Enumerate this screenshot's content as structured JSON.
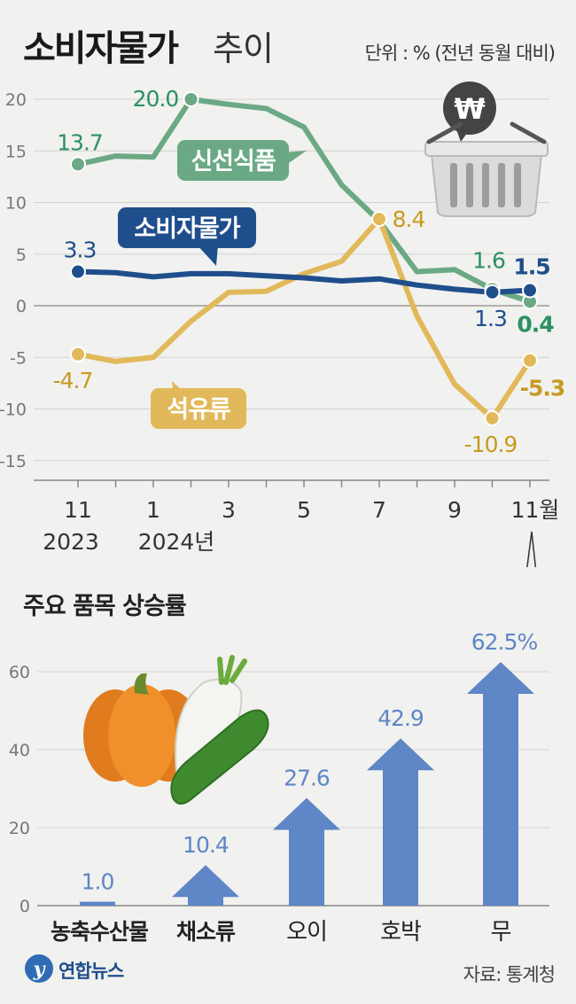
{
  "title": {
    "main": "소비자물가",
    "sub": "추이",
    "unit": "단위 : % (전년 동월 대비)"
  },
  "colors": {
    "cpi": "#1f4e8c",
    "fresh": "#6aa984",
    "oil": "#e2b95a",
    "bar": "#5f86c6",
    "fresh_label": "#2b9160",
    "oil_label": "#c79a22"
  },
  "chart_data": [
    {
      "type": "line",
      "x": [
        "2023-11",
        "2023-12",
        "2024-01",
        "2024-02",
        "2024-03",
        "2024-04",
        "2024-05",
        "2024-06",
        "2024-07",
        "2024-08",
        "2024-09",
        "2024-10",
        "2024-11"
      ],
      "x_tick_labels": [
        "11",
        "1",
        "3",
        "5",
        "7",
        "9",
        "11월"
      ],
      "x_year_labels": [
        "2023",
        "2024년"
      ],
      "y_ticks": [
        "20",
        "15",
        "10",
        "5",
        "0",
        "-5",
        "-10",
        "-15"
      ],
      "ylim": [
        -15,
        20
      ],
      "grid": true,
      "series": [
        {
          "name": "신선식품",
          "values": [
            13.7,
            14.5,
            14.4,
            20.0,
            19.5,
            19.1,
            17.3,
            11.7,
            8.2,
            3.3,
            3.5,
            1.6,
            0.4
          ]
        },
        {
          "name": "석유류",
          "values": [
            -4.7,
            -5.4,
            -5.0,
            -1.5,
            1.3,
            1.4,
            3.1,
            4.3,
            8.4,
            -1.0,
            -7.6,
            -10.9,
            -5.3
          ]
        },
        {
          "name": "소비자물가",
          "values": [
            3.3,
            3.2,
            2.8,
            3.1,
            3.1,
            2.9,
            2.7,
            2.4,
            2.6,
            2.0,
            1.6,
            1.3,
            1.5
          ]
        }
      ],
      "annotations": [
        "13.7",
        "20.0",
        "3.3",
        "-4.7",
        "8.4",
        "1.6",
        "1.5",
        "1.3",
        "0.4",
        "-10.9",
        "-5.3"
      ]
    },
    {
      "type": "bar",
      "title": "주요 품목 상승률",
      "categories": [
        "농축수산물",
        "채소류",
        "오이",
        "호박",
        "무"
      ],
      "values": [
        1.0,
        10.4,
        27.6,
        42.9,
        62.5
      ],
      "value_labels": [
        "1.0",
        "10.4",
        "27.6",
        "42.9",
        "62.5%"
      ],
      "y_ticks": [
        "60",
        "40",
        "20",
        "0"
      ],
      "ylim": [
        0,
        65
      ],
      "grid": true
    }
  ],
  "footer": {
    "logo": "연합뉴스",
    "source": "자료: 통계청"
  }
}
